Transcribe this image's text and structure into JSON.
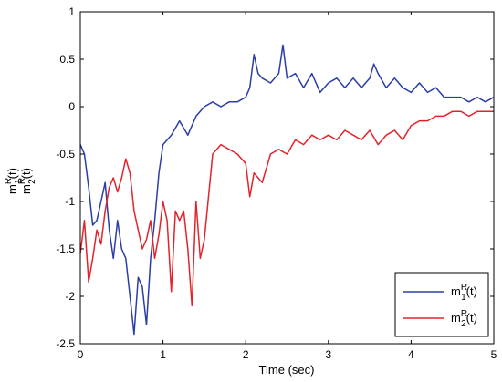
{
  "chart_data": {
    "type": "line",
    "xlabel": "Time (sec)",
    "ylabel_lines": [
      {
        "base": "m",
        "sup": "R",
        "sub": "1",
        "tail": "(t)"
      },
      {
        "base": "m",
        "sup": "R",
        "sub": "2",
        "tail": "(t)"
      }
    ],
    "xlim": [
      0,
      5
    ],
    "ylim": [
      -2.5,
      1
    ],
    "xticks": [
      0,
      1,
      2,
      3,
      4,
      5
    ],
    "xtick_labels": [
      "0",
      "1",
      "2",
      "3",
      "4",
      "5"
    ],
    "yticks": [
      1,
      0.5,
      0,
      -0.5,
      -1,
      -1.5,
      -2,
      -2.5
    ],
    "ytick_labels": [
      "1",
      "0.5",
      "0",
      "-0.5",
      "-1",
      "-1.5",
      "-2",
      "-2.5"
    ],
    "grid": false,
    "legend_position": "bottom-right",
    "series": [
      {
        "name": "m1R(t)",
        "label": {
          "base": "m",
          "sup": "R",
          "sub": "1",
          "tail": "(t)"
        },
        "color": "#2b3ea6",
        "x": [
          0,
          0.05,
          0.1,
          0.15,
          0.2,
          0.25,
          0.3,
          0.35,
          0.4,
          0.45,
          0.5,
          0.55,
          0.6,
          0.65,
          0.7,
          0.75,
          0.8,
          0.85,
          0.9,
          0.95,
          1.0,
          1.1,
          1.2,
          1.3,
          1.35,
          1.4,
          1.5,
          1.6,
          1.7,
          1.8,
          1.9,
          2.0,
          2.05,
          2.1,
          2.15,
          2.2,
          2.3,
          2.4,
          2.45,
          2.5,
          2.6,
          2.7,
          2.8,
          2.9,
          3.0,
          3.1,
          3.2,
          3.3,
          3.4,
          3.5,
          3.55,
          3.6,
          3.7,
          3.8,
          3.9,
          4.0,
          4.1,
          4.2,
          4.3,
          4.4,
          4.5,
          4.6,
          4.7,
          4.8,
          4.9,
          5.0
        ],
        "values": [
          -0.4,
          -0.5,
          -0.85,
          -1.25,
          -1.2,
          -1.0,
          -0.8,
          -1.3,
          -1.6,
          -1.2,
          -1.5,
          -1.6,
          -2.0,
          -2.4,
          -1.8,
          -1.9,
          -2.3,
          -1.6,
          -1.2,
          -0.7,
          -0.4,
          -0.3,
          -0.15,
          -0.3,
          -0.2,
          -0.1,
          0.0,
          0.05,
          0.0,
          0.05,
          0.05,
          0.1,
          0.2,
          0.55,
          0.35,
          0.3,
          0.25,
          0.35,
          0.65,
          0.3,
          0.35,
          0.2,
          0.35,
          0.15,
          0.25,
          0.3,
          0.2,
          0.3,
          0.2,
          0.3,
          0.45,
          0.35,
          0.2,
          0.3,
          0.2,
          0.15,
          0.25,
          0.15,
          0.2,
          0.1,
          0.1,
          0.1,
          0.05,
          0.1,
          0.05,
          0.1
        ]
      },
      {
        "name": "m2R(t)",
        "label": {
          "base": "m",
          "sup": "R",
          "sub": "2",
          "tail": "(t)"
        },
        "color": "#e3232b",
        "x": [
          0,
          0.05,
          0.1,
          0.15,
          0.2,
          0.25,
          0.3,
          0.35,
          0.4,
          0.45,
          0.5,
          0.55,
          0.6,
          0.65,
          0.7,
          0.75,
          0.8,
          0.85,
          0.9,
          0.95,
          1.0,
          1.05,
          1.1,
          1.15,
          1.2,
          1.25,
          1.3,
          1.35,
          1.4,
          1.45,
          1.5,
          1.6,
          1.7,
          1.8,
          1.9,
          2.0,
          2.05,
          2.1,
          2.2,
          2.3,
          2.4,
          2.5,
          2.6,
          2.7,
          2.8,
          2.9,
          3.0,
          3.1,
          3.2,
          3.3,
          3.4,
          3.5,
          3.6,
          3.7,
          3.8,
          3.9,
          4.0,
          4.1,
          4.2,
          4.3,
          4.4,
          4.5,
          4.6,
          4.7,
          4.8,
          4.9,
          5.0
        ],
        "values": [
          -1.55,
          -1.2,
          -1.85,
          -1.6,
          -1.3,
          -1.45,
          -1.1,
          -0.85,
          -0.75,
          -0.9,
          -0.75,
          -0.55,
          -0.7,
          -1.1,
          -1.3,
          -1.5,
          -1.4,
          -1.2,
          -1.6,
          -1.35,
          -1.0,
          -1.2,
          -1.95,
          -1.1,
          -1.2,
          -1.1,
          -1.5,
          -2.1,
          -1.0,
          -1.6,
          -1.4,
          -0.5,
          -0.4,
          -0.45,
          -0.5,
          -0.6,
          -0.95,
          -0.7,
          -0.8,
          -0.5,
          -0.45,
          -0.5,
          -0.35,
          -0.4,
          -0.3,
          -0.35,
          -0.3,
          -0.35,
          -0.25,
          -0.3,
          -0.35,
          -0.25,
          -0.4,
          -0.3,
          -0.25,
          -0.35,
          -0.2,
          -0.15,
          -0.15,
          -0.1,
          -0.1,
          -0.05,
          -0.05,
          -0.1,
          -0.05,
          -0.05,
          -0.05
        ]
      }
    ]
  }
}
